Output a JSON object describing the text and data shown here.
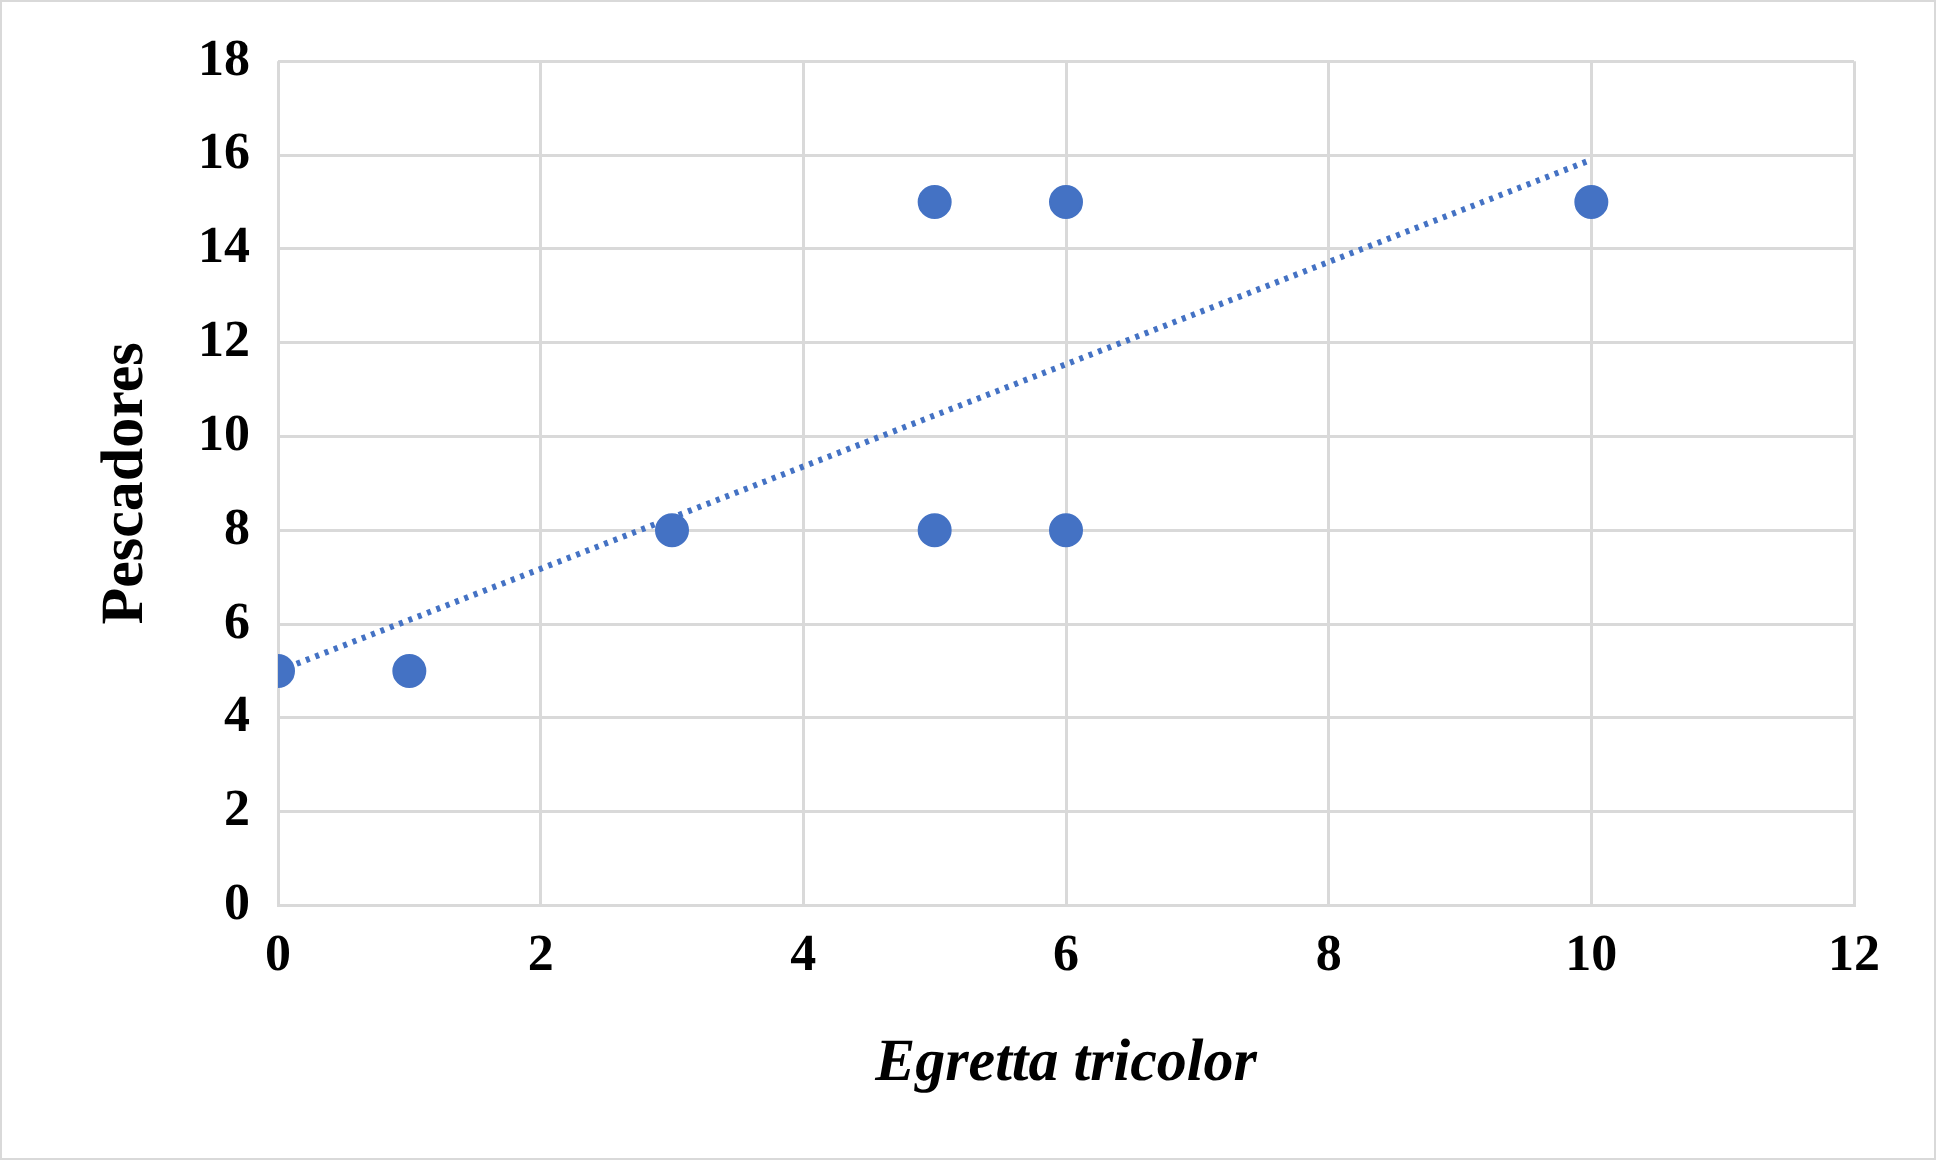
{
  "chart_data": {
    "type": "scatter",
    "xlabel": "Egretta tricolor",
    "ylabel": "Pescadores",
    "xlim": [
      0,
      12
    ],
    "xticks": [
      0,
      2,
      4,
      6,
      8,
      10,
      12
    ],
    "ylim": [
      0,
      18
    ],
    "yticks": [
      0,
      2,
      4,
      6,
      8,
      10,
      12,
      14,
      16,
      18
    ],
    "grid": true,
    "legend": false,
    "x": [
      0,
      1,
      3,
      5,
      5,
      6,
      6,
      10
    ],
    "series": [
      {
        "type": "scatter",
        "color": "#4472c4",
        "marker": "circle",
        "values": [
          5,
          5,
          8,
          15,
          8,
          15,
          8,
          15
        ]
      },
      {
        "type": "line",
        "color": "#4472c4",
        "marker": "none",
        "x": [
          0,
          10
        ],
        "values": [
          5,
          15.9
        ],
        "line_style": "dotted"
      }
    ]
  }
}
